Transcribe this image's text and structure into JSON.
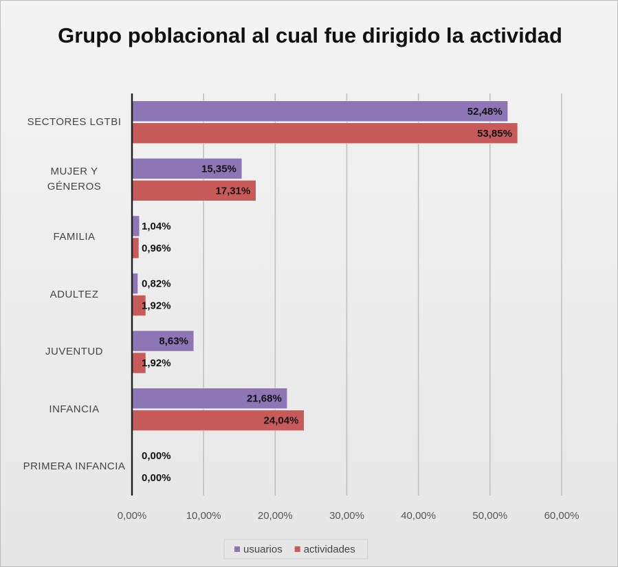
{
  "chart_data": {
    "type": "barh",
    "title": "Grupo poblacional al cual fue dirigido la actividad",
    "categories": [
      "SECTORES LGTBI",
      "MUJER Y GÉNEROS",
      "FAMILIA",
      "ADULTEZ",
      "JUVENTUD",
      "INFANCIA",
      "PRIMERA INFANCIA"
    ],
    "series": [
      {
        "name": "usuarios",
        "color": "#8e75b5",
        "values": [
          52.48,
          15.35,
          1.04,
          0.82,
          8.63,
          21.68,
          0.0
        ],
        "value_labels": [
          "52,48%",
          "15,35%",
          "1,04%",
          "0,82%",
          "8,63%",
          "21,68%",
          "0,00%"
        ]
      },
      {
        "name": "actividades",
        "color": "#c85a5a",
        "values": [
          53.85,
          17.31,
          0.96,
          1.92,
          1.92,
          24.04,
          0.0
        ],
        "value_labels": [
          "53,85%",
          "17,31%",
          "0,96%",
          "1,92%",
          "1,92%",
          "24,04%",
          "0,00%"
        ]
      }
    ],
    "xlim": [
      0,
      60
    ],
    "xticks": [
      {
        "value": 0,
        "label": "0,00%"
      },
      {
        "value": 10,
        "label": "10,00%"
      },
      {
        "value": 20,
        "label": "20,00%"
      },
      {
        "value": 30,
        "label": "30,00%"
      },
      {
        "value": 40,
        "label": "40,00%"
      },
      {
        "value": 50,
        "label": "50,00%"
      },
      {
        "value": 60,
        "label": "60,00%"
      }
    ],
    "grid": true,
    "legend": "bottom"
  }
}
